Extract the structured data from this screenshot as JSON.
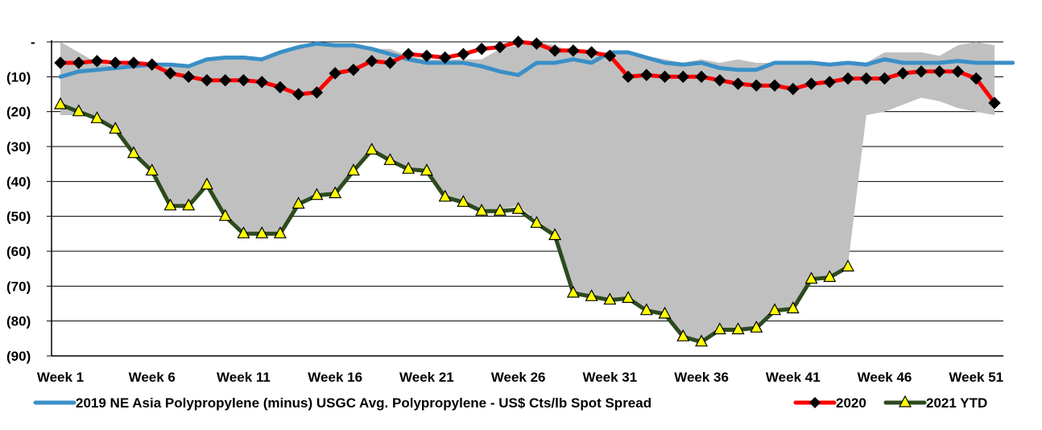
{
  "chart_data": {
    "type": "line",
    "title": "",
    "xlabel": "",
    "ylabel": "",
    "ylim": [
      -90,
      0
    ],
    "y_ticks": [
      {
        "value": 0,
        "label": "-"
      },
      {
        "value": -10,
        "label": "(10)"
      },
      {
        "value": -20,
        "label": "(20)"
      },
      {
        "value": -30,
        "label": "(30)"
      },
      {
        "value": -40,
        "label": "(40)"
      },
      {
        "value": -50,
        "label": "(50)"
      },
      {
        "value": -60,
        "label": "(60)"
      },
      {
        "value": -70,
        "label": "(70)"
      },
      {
        "value": -80,
        "label": "(80)"
      },
      {
        "value": -90,
        "label": "(90)"
      }
    ],
    "x_ticks": [
      {
        "week": 1,
        "label": "Week 1"
      },
      {
        "week": 6,
        "label": "Week 6"
      },
      {
        "week": 11,
        "label": "Week 11"
      },
      {
        "week": 16,
        "label": "Week 16"
      },
      {
        "week": 21,
        "label": "Week 21"
      },
      {
        "week": 26,
        "label": "Week 26"
      },
      {
        "week": 31,
        "label": "Week 31"
      },
      {
        "week": 36,
        "label": "Week 36"
      },
      {
        "week": 41,
        "label": "Week 41"
      },
      {
        "week": 46,
        "label": "Week 46"
      },
      {
        "week": 51,
        "label": "Week 51"
      }
    ],
    "grid": "horizontal",
    "legend_position": "bottom",
    "band": {
      "color": "#c0c0c0",
      "upper": [
        0,
        -3,
        -6,
        -7,
        -7,
        -6,
        -6,
        -7,
        -5,
        -5,
        -5,
        -5,
        -3,
        -1,
        0,
        -1,
        -1,
        -2,
        -2,
        -4,
        -5,
        -5,
        -5,
        -5,
        -2,
        -1,
        0,
        -1,
        -3,
        -3,
        -3,
        -3,
        -4,
        -5,
        -6,
        -5,
        -6,
        -5,
        -6,
        -6,
        -6,
        -6,
        -6,
        -6,
        -6,
        -3,
        -3,
        -3,
        -4,
        -1,
        0,
        -1
      ],
      "lower": [
        -21,
        -21,
        -22,
        -25,
        -32,
        -37,
        -47,
        -47,
        -41,
        -50,
        -55,
        -55,
        -55,
        -46,
        -44,
        -43,
        -37,
        -31,
        -34,
        -36,
        -37,
        -44,
        -46,
        -48,
        -48,
        -47,
        -51,
        -55,
        -72,
        -73,
        -74,
        -74,
        -77,
        -78,
        -85,
        -86,
        -83,
        -83,
        -82,
        -77,
        -77,
        -68,
        -67,
        -64,
        -21,
        -20,
        -18,
        -16,
        -17,
        -19,
        -20,
        -21
      ]
    },
    "series": [
      {
        "name": "2019 NE Asia Polypropylene (minus) USGC Avg. Polypropylene - US$ Cts/lb Spot Spread",
        "color": "#3a8fc7",
        "marker": "none",
        "values": [
          -10,
          -8.5,
          -8,
          -7.5,
          -7,
          -6.5,
          -6.5,
          -7,
          -5,
          -4.5,
          -4.5,
          -5,
          -3,
          -1.5,
          -0.5,
          -1,
          -1,
          -2,
          -3.5,
          -5,
          -6,
          -6,
          -6,
          -7,
          -8.5,
          -9.5,
          -6,
          -6,
          -5,
          -6,
          -3,
          -3,
          -4.5,
          -6,
          -6.5,
          -6,
          -7.5,
          -8,
          -8,
          -6,
          -6,
          -6,
          -6.5,
          -6,
          -6.5,
          -5,
          -6,
          -6,
          -6,
          -5.5,
          -6,
          -6,
          -6
        ]
      },
      {
        "name": "2020",
        "color": "#ff0000",
        "marker": "diamond",
        "values": [
          -6,
          -6,
          -5.5,
          -6,
          -6,
          -6.5,
          -9,
          -10,
          -11,
          -11,
          -11,
          -11.5,
          -13,
          -15,
          -14.5,
          -9,
          -8,
          -5.5,
          -6,
          -3.5,
          -4,
          -4.5,
          -3.5,
          -2,
          -1.5,
          0,
          -0.5,
          -2.5,
          -2.5,
          -3,
          -4,
          -10,
          -9.5,
          -10,
          -10,
          -10,
          -11,
          -12,
          -12.5,
          -12.5,
          -13.5,
          -12,
          -11.5,
          -10.5,
          -10.5,
          -10.5,
          -9,
          -8.5,
          -8.5,
          -8.5,
          -10.5,
          -17.5
        ]
      },
      {
        "name": "2021 YTD",
        "color": "#2d4a1e",
        "marker": "triangle",
        "values": [
          -18,
          -20,
          -22,
          -25,
          -32,
          -37,
          -47,
          -47,
          -41,
          -50,
          -55,
          -55,
          -55,
          -46.5,
          -44,
          -43.5,
          -37,
          -31,
          -34,
          -36.5,
          -37,
          -44.5,
          -46,
          -48.5,
          -48.5,
          -48,
          -52,
          -55.5,
          -72,
          -73,
          -74,
          -73.5,
          -77,
          -78,
          -84.5,
          -86,
          -82.5,
          -82.5,
          -82,
          -77,
          -76.5,
          -68,
          -67.5,
          -64.5
        ]
      }
    ]
  }
}
